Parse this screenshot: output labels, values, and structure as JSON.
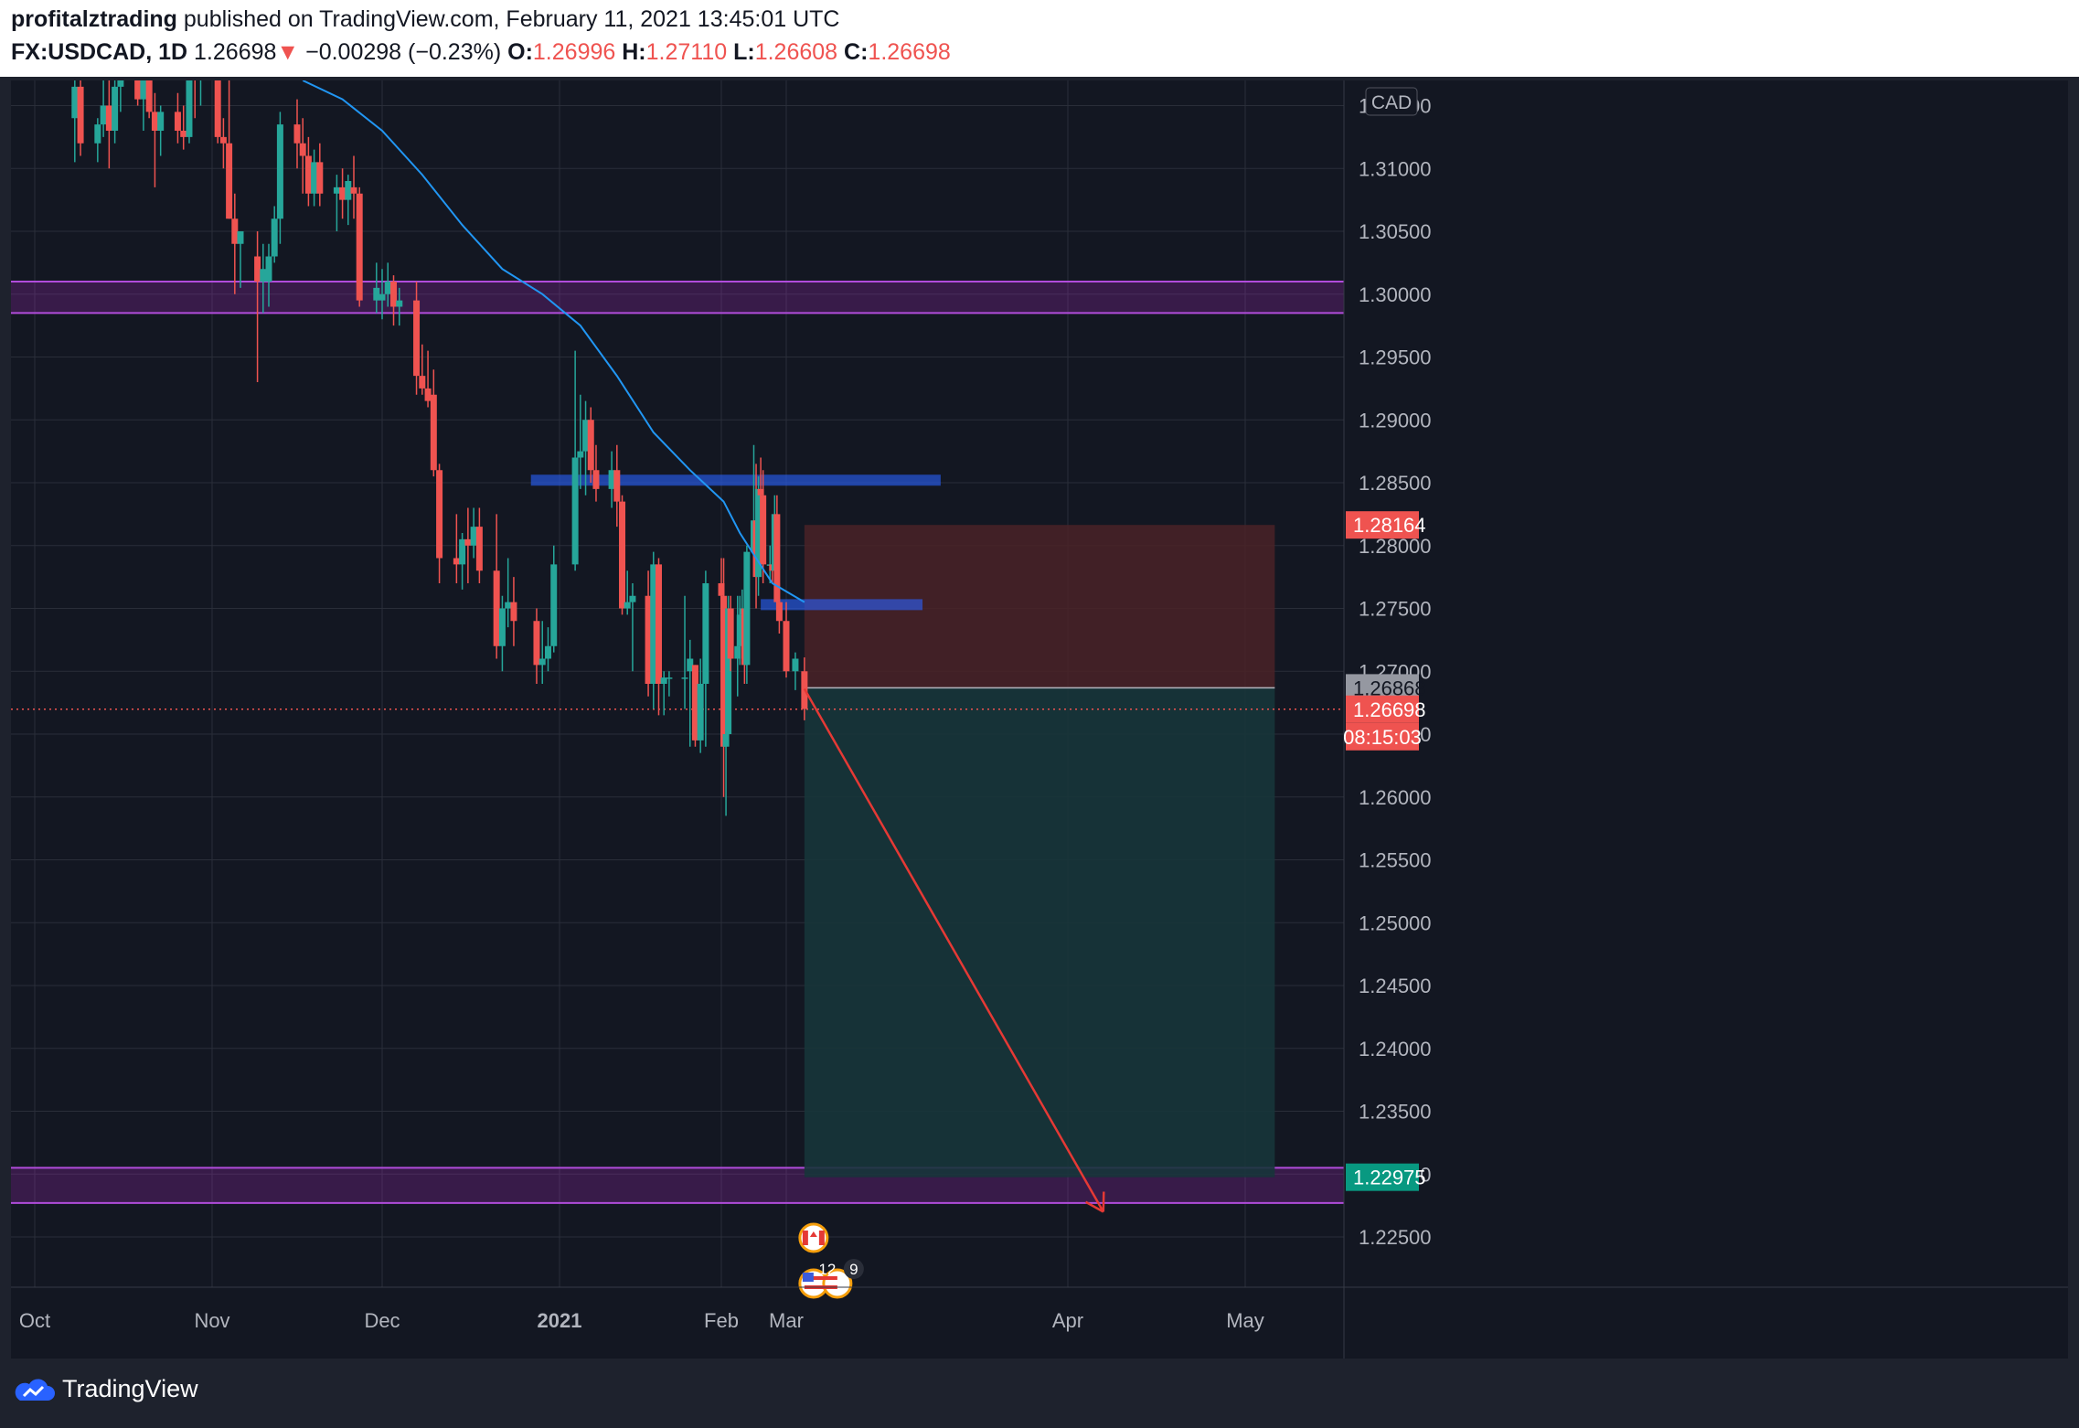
{
  "header": {
    "author": "profitalztrading",
    "published_text": " published on TradingView.com, February 11, 2021 13:45:01 UTC",
    "symbol": "FX:USDCAD, 1D",
    "last": "1.26698",
    "change_arrow": "▼",
    "change": "−0.00298 (−0.23%)",
    "o_label": "O:",
    "o_value": "1.26996",
    "h_label": "H:",
    "h_value": "1.27110",
    "l_label": "L:",
    "l_value": "1.26608",
    "c_label": "C:",
    "c_value": "1.26698"
  },
  "footer": {
    "brand": "TradingView"
  },
  "colors": {
    "up": "#26a69a",
    "down": "#ef5350",
    "ma": "#2196f3",
    "zone": "#9c27b0",
    "level": "#2962ff",
    "arrow": "#e53935",
    "stop_zone": "#4a2227",
    "target_zone": "#17353a"
  },
  "chart_data": {
    "type": "candlestick",
    "symbol": "FX:USDCAD",
    "interval": "1D",
    "currency_label": "CAD",
    "y_ticks": [
      "1.31500",
      "1.31000",
      "1.30500",
      "1.30000",
      "1.29500",
      "1.29000",
      "1.28500",
      "1.28000",
      "1.27500",
      "1.27000",
      "1.26500",
      "1.26000",
      "1.25500",
      "1.25000",
      "1.24500",
      "1.24000",
      "1.23500",
      "1.23000",
      "1.22500"
    ],
    "ylim": [
      1.221,
      1.317
    ],
    "x_labels": [
      {
        "label": "Oct",
        "date": "2020-10-01"
      },
      {
        "label": "Nov",
        "date": "2020-11-01"
      },
      {
        "label": "Dec",
        "date": "2020-12-01"
      },
      {
        "label": "2021",
        "date": "2021-01-01"
      },
      {
        "label": "Feb",
        "date": "2021-02-01"
      },
      {
        "label": "Mar",
        "date": "2021-03-01"
      },
      {
        "label": "Apr",
        "date": "2021-04-01"
      },
      {
        "label": "May",
        "date": "2021-05-01"
      }
    ],
    "price_labels": {
      "stop": "1.28164",
      "entry": "1.26868",
      "last": "1.26698",
      "countdown": "08:15:03",
      "target": "1.22975"
    },
    "event_badges": {
      "count_label": "12",
      "more_label": "9"
    },
    "candles": [
      {
        "date": "2020-10-08",
        "o": 1.314,
        "h": 1.3185,
        "l": 1.3105,
        "c": 1.3165
      },
      {
        "date": "2020-10-09",
        "o": 1.3165,
        "h": 1.318,
        "l": 1.311,
        "c": 1.312
      },
      {
        "date": "2020-10-12",
        "o": 1.312,
        "h": 1.314,
        "l": 1.3105,
        "c": 1.3135
      },
      {
        "date": "2020-10-13",
        "o": 1.3135,
        "h": 1.317,
        "l": 1.3125,
        "c": 1.315
      },
      {
        "date": "2020-10-14",
        "o": 1.315,
        "h": 1.318,
        "l": 1.31,
        "c": 1.313
      },
      {
        "date": "2020-10-15",
        "o": 1.313,
        "h": 1.3175,
        "l": 1.312,
        "c": 1.3165
      },
      {
        "date": "2020-10-16",
        "o": 1.3165,
        "h": 1.318,
        "l": 1.3145,
        "c": 1.317
      },
      {
        "date": "2020-10-19",
        "o": 1.317,
        "h": 1.3185,
        "l": 1.315,
        "c": 1.3155
      },
      {
        "date": "2020-10-20",
        "o": 1.3155,
        "h": 1.318,
        "l": 1.313,
        "c": 1.3175
      },
      {
        "date": "2020-10-21",
        "o": 1.3175,
        "h": 1.318,
        "l": 1.314,
        "c": 1.3145
      },
      {
        "date": "2020-10-22",
        "o": 1.3145,
        "h": 1.316,
        "l": 1.3085,
        "c": 1.313
      },
      {
        "date": "2020-10-23",
        "o": 1.313,
        "h": 1.315,
        "l": 1.311,
        "c": 1.3145
      },
      {
        "date": "2020-10-26",
        "o": 1.3145,
        "h": 1.316,
        "l": 1.312,
        "c": 1.313
      },
      {
        "date": "2020-10-27",
        "o": 1.313,
        "h": 1.315,
        "l": 1.3115,
        "c": 1.3125
      },
      {
        "date": "2020-10-28",
        "o": 1.3125,
        "h": 1.318,
        "l": 1.312,
        "c": 1.3175
      },
      {
        "date": "2020-10-29",
        "o": 1.3175,
        "h": 1.3185,
        "l": 1.314,
        "c": 1.317
      },
      {
        "date": "2020-10-30",
        "o": 1.317,
        "h": 1.318,
        "l": 1.315,
        "c": 1.3175
      },
      {
        "date": "2020-11-02",
        "o": 1.3175,
        "h": 1.3185,
        "l": 1.312,
        "c": 1.3125
      },
      {
        "date": "2020-11-03",
        "o": 1.3125,
        "h": 1.314,
        "l": 1.31,
        "c": 1.312
      },
      {
        "date": "2020-11-04",
        "o": 1.312,
        "h": 1.3175,
        "l": 1.306,
        "c": 1.306
      },
      {
        "date": "2020-11-05",
        "o": 1.306,
        "h": 1.308,
        "l": 1.3,
        "c": 1.304
      },
      {
        "date": "2020-11-06",
        "o": 1.304,
        "h": 1.305,
        "l": 1.3005,
        "c": 1.305
      },
      {
        "date": "2020-11-09",
        "o": 1.303,
        "h": 1.305,
        "l": 1.293,
        "c": 1.301
      },
      {
        "date": "2020-11-10",
        "o": 1.301,
        "h": 1.304,
        "l": 1.2985,
        "c": 1.302
      },
      {
        "date": "2020-11-11",
        "o": 1.301,
        "h": 1.304,
        "l": 1.299,
        "c": 1.303
      },
      {
        "date": "2020-11-12",
        "o": 1.303,
        "h": 1.307,
        "l": 1.3025,
        "c": 1.306
      },
      {
        "date": "2020-11-13",
        "o": 1.306,
        "h": 1.3145,
        "l": 1.304,
        "c": 1.3135
      },
      {
        "date": "2020-11-16",
        "o": 1.3135,
        "h": 1.3155,
        "l": 1.31,
        "c": 1.312
      },
      {
        "date": "2020-11-17",
        "o": 1.312,
        "h": 1.314,
        "l": 1.308,
        "c": 1.311
      },
      {
        "date": "2020-11-18",
        "o": 1.311,
        "h": 1.3125,
        "l": 1.307,
        "c": 1.308
      },
      {
        "date": "2020-11-19",
        "o": 1.308,
        "h": 1.3115,
        "l": 1.307,
        "c": 1.3105
      },
      {
        "date": "2020-11-20",
        "o": 1.3105,
        "h": 1.312,
        "l": 1.307,
        "c": 1.308
      },
      {
        "date": "2020-11-23",
        "o": 1.308,
        "h": 1.3095,
        "l": 1.305,
        "c": 1.3085
      },
      {
        "date": "2020-11-24",
        "o": 1.3085,
        "h": 1.31,
        "l": 1.306,
        "c": 1.3075
      },
      {
        "date": "2020-11-25",
        "o": 1.3075,
        "h": 1.3095,
        "l": 1.3055,
        "c": 1.309
      },
      {
        "date": "2020-11-26",
        "o": 1.3085,
        "h": 1.311,
        "l": 1.306,
        "c": 1.308
      },
      {
        "date": "2020-11-27",
        "o": 1.308,
        "h": 1.3085,
        "l": 1.299,
        "c": 1.2995
      },
      {
        "date": "2020-11-30",
        "o": 1.2995,
        "h": 1.3025,
        "l": 1.2985,
        "c": 1.3005
      },
      {
        "date": "2020-12-01",
        "o": 1.2995,
        "h": 1.302,
        "l": 1.298,
        "c": 1.3
      },
      {
        "date": "2020-12-02",
        "o": 1.3,
        "h": 1.3025,
        "l": 1.299,
        "c": 1.301
      },
      {
        "date": "2020-12-03",
        "o": 1.301,
        "h": 1.3015,
        "l": 1.2975,
        "c": 1.299
      },
      {
        "date": "2020-12-04",
        "o": 1.299,
        "h": 1.3005,
        "l": 1.2975,
        "c": 1.2995
      },
      {
        "date": "2020-12-07",
        "o": 1.2995,
        "h": 1.301,
        "l": 1.292,
        "c": 1.2935
      },
      {
        "date": "2020-12-08",
        "o": 1.2935,
        "h": 1.296,
        "l": 1.292,
        "c": 1.2925
      },
      {
        "date": "2020-12-09",
        "o": 1.2925,
        "h": 1.2955,
        "l": 1.291,
        "c": 1.2915
      },
      {
        "date": "2020-12-10",
        "o": 1.292,
        "h": 1.294,
        "l": 1.2855,
        "c": 1.286
      },
      {
        "date": "2020-12-11",
        "o": 1.286,
        "h": 1.2865,
        "l": 1.277,
        "c": 1.279
      },
      {
        "date": "2020-12-14",
        "o": 1.279,
        "h": 1.2825,
        "l": 1.277,
        "c": 1.2785
      },
      {
        "date": "2020-12-15",
        "o": 1.2785,
        "h": 1.281,
        "l": 1.2765,
        "c": 1.2805
      },
      {
        "date": "2020-12-16",
        "o": 1.2805,
        "h": 1.283,
        "l": 1.277,
        "c": 1.28
      },
      {
        "date": "2020-12-17",
        "o": 1.28,
        "h": 1.283,
        "l": 1.279,
        "c": 1.2815
      },
      {
        "date": "2020-12-18",
        "o": 1.2815,
        "h": 1.283,
        "l": 1.277,
        "c": 1.278
      },
      {
        "date": "2020-12-21",
        "o": 1.278,
        "h": 1.2825,
        "l": 1.271,
        "c": 1.272
      },
      {
        "date": "2020-12-22",
        "o": 1.272,
        "h": 1.276,
        "l": 1.27,
        "c": 1.275
      },
      {
        "date": "2020-12-23",
        "o": 1.275,
        "h": 1.279,
        "l": 1.2735,
        "c": 1.2755
      },
      {
        "date": "2020-12-24",
        "o": 1.2755,
        "h": 1.2775,
        "l": 1.272,
        "c": 1.274
      },
      {
        "date": "2020-12-28",
        "o": 1.274,
        "h": 1.275,
        "l": 1.269,
        "c": 1.2705
      },
      {
        "date": "2020-12-29",
        "o": 1.2705,
        "h": 1.274,
        "l": 1.269,
        "c": 1.271
      },
      {
        "date": "2020-12-30",
        "o": 1.271,
        "h": 1.2735,
        "l": 1.27,
        "c": 1.272
      },
      {
        "date": "2020-12-31",
        "o": 1.272,
        "h": 1.28,
        "l": 1.2715,
        "c": 1.2785
      },
      {
        "date": "2021-01-04",
        "o": 1.2785,
        "h": 1.2955,
        "l": 1.278,
        "c": 1.287
      },
      {
        "date": "2021-01-05",
        "o": 1.287,
        "h": 1.292,
        "l": 1.2845,
        "c": 1.2875
      },
      {
        "date": "2021-01-06",
        "o": 1.2875,
        "h": 1.2915,
        "l": 1.284,
        "c": 1.29
      },
      {
        "date": "2021-01-07",
        "o": 1.29,
        "h": 1.291,
        "l": 1.285,
        "c": 1.286
      },
      {
        "date": "2021-01-08",
        "o": 1.286,
        "h": 1.288,
        "l": 1.2835,
        "c": 1.2845
      },
      {
        "date": "2021-01-11",
        "o": 1.2845,
        "h": 1.2875,
        "l": 1.283,
        "c": 1.286
      },
      {
        "date": "2021-01-12",
        "o": 1.286,
        "h": 1.288,
        "l": 1.2815,
        "c": 1.2835
      },
      {
        "date": "2021-01-13",
        "o": 1.2835,
        "h": 1.284,
        "l": 1.2745,
        "c": 1.275
      },
      {
        "date": "2021-01-14",
        "o": 1.275,
        "h": 1.278,
        "l": 1.2745,
        "c": 1.2755
      },
      {
        "date": "2021-01-15",
        "o": 1.2755,
        "h": 1.277,
        "l": 1.27,
        "c": 1.276
      },
      {
        "date": "2021-01-18",
        "o": 1.276,
        "h": 1.278,
        "l": 1.268,
        "c": 1.269
      },
      {
        "date": "2021-01-19",
        "o": 1.269,
        "h": 1.2795,
        "l": 1.267,
        "c": 1.2785
      },
      {
        "date": "2021-01-20",
        "o": 1.2785,
        "h": 1.279,
        "l": 1.2665,
        "c": 1.269
      },
      {
        "date": "2021-01-21",
        "o": 1.269,
        "h": 1.27,
        "l": 1.2665,
        "c": 1.2695
      },
      {
        "date": "2021-01-22",
        "o": 1.2695,
        "h": 1.27,
        "l": 1.268,
        "c": 1.2695
      },
      {
        "date": "2021-01-25",
        "o": 1.2695,
        "h": 1.276,
        "l": 1.267,
        "c": 1.2695
      },
      {
        "date": "2021-01-26",
        "o": 1.27,
        "h": 1.2725,
        "l": 1.264,
        "c": 1.271
      },
      {
        "date": "2021-01-27",
        "o": 1.2705,
        "h": 1.2705,
        "l": 1.264,
        "c": 1.2645
      },
      {
        "date": "2021-01-28",
        "o": 1.2645,
        "h": 1.271,
        "l": 1.2635,
        "c": 1.269
      },
      {
        "date": "2021-01-29",
        "o": 1.269,
        "h": 1.278,
        "l": 1.264,
        "c": 1.277
      },
      {
        "date": "2021-02-01",
        "o": 1.277,
        "h": 1.279,
        "l": 1.274,
        "c": 1.276
      },
      {
        "date": "2021-02-02",
        "o": 1.276,
        "h": 1.279,
        "l": 1.26,
        "c": 1.264
      },
      {
        "date": "2021-02-03",
        "o": 1.264,
        "h": 1.266,
        "l": 1.2585,
        "c": 1.265
      },
      {
        "date": "2021-02-04",
        "o": 1.265,
        "h": 1.276,
        "l": 1.2645,
        "c": 1.275
      },
      {
        "date": "2021-02-05",
        "o": 1.275,
        "h": 1.276,
        "l": 1.27,
        "c": 1.271
      },
      {
        "date": "2021-02-08",
        "o": 1.271,
        "h": 1.276,
        "l": 1.268,
        "c": 1.272
      },
      {
        "date": "2021-02-09",
        "o": 1.272,
        "h": 1.276,
        "l": 1.2705,
        "c": 1.2745
      },
      {
        "date": "2021-02-10",
        "o": 1.2745,
        "h": 1.2765,
        "l": 1.271,
        "c": 1.275
      },
      {
        "date": "2021-02-11",
        "o": 1.275,
        "h": 1.277,
        "l": 1.269,
        "c": 1.2705
      },
      {
        "date": "2021-02-12",
        "o": 1.2705,
        "h": 1.28,
        "l": 1.269,
        "c": 1.2795
      },
      {
        "date": "2021-02-15",
        "o": 1.2795,
        "h": 1.288,
        "l": 1.2785,
        "c": 1.282
      },
      {
        "date": "2021-02-16",
        "o": 1.282,
        "h": 1.2865,
        "l": 1.275,
        "c": 1.2775
      },
      {
        "date": "2021-02-17",
        "o": 1.2775,
        "h": 1.2855,
        "l": 1.276,
        "c": 1.2845
      },
      {
        "date": "2021-02-18",
        "o": 1.2845,
        "h": 1.287,
        "l": 1.282,
        "c": 1.284
      },
      {
        "date": "2021-02-19",
        "o": 1.284,
        "h": 1.286,
        "l": 1.277,
        "c": 1.2785
      },
      {
        "date": "2021-02-22",
        "o": 1.2785,
        "h": 1.28,
        "l": 1.277,
        "c": 1.2785
      },
      {
        "date": "2021-02-23",
        "o": 1.2785,
        "h": 1.2825,
        "l": 1.277,
        "c": 1.278
      },
      {
        "date": "2021-02-24",
        "o": 1.278,
        "h": 1.284,
        "l": 1.277,
        "c": 1.2825
      },
      {
        "date": "2021-02-25",
        "o": 1.2825,
        "h": 1.284,
        "l": 1.275,
        "c": 1.2755
      },
      {
        "date": "2021-02-26",
        "o": 1.2755,
        "h": 1.277,
        "l": 1.273,
        "c": 1.274
      },
      {
        "date": "2021-03-01",
        "o": 1.274,
        "h": 1.2755,
        "l": 1.2695,
        "c": 1.27
      },
      {
        "date": "2021-03-02",
        "o": 1.27,
        "h": 1.2715,
        "l": 1.2685,
        "c": 1.271
      },
      {
        "date": "2021-03-03",
        "o": 1.27,
        "h": 1.2711,
        "l": 1.2661,
        "c": 1.267
      }
    ],
    "ma_series": {
      "name": "",
      "points": [
        {
          "date": "2020-11-17",
          "v": 1.317
        },
        {
          "date": "2020-11-24",
          "v": 1.3155
        },
        {
          "date": "2020-12-01",
          "v": 1.313
        },
        {
          "date": "2020-12-08",
          "v": 1.3095
        },
        {
          "date": "2020-12-15",
          "v": 1.3055
        },
        {
          "date": "2020-12-22",
          "v": 1.302
        },
        {
          "date": "2020-12-29",
          "v": 1.3
        },
        {
          "date": "2021-01-05",
          "v": 1.2975
        },
        {
          "date": "2021-01-12",
          "v": 1.2935
        },
        {
          "date": "2021-01-19",
          "v": 1.289
        },
        {
          "date": "2021-01-26",
          "v": 1.286
        },
        {
          "date": "2021-02-02",
          "v": 1.2835
        },
        {
          "date": "2021-02-09",
          "v": 1.281
        },
        {
          "date": "2021-02-16",
          "v": 1.279
        },
        {
          "date": "2021-02-23",
          "v": 1.277
        },
        {
          "date": "2021-03-03",
          "v": 1.2755
        }
      ]
    },
    "zones": [
      {
        "from": 1.2985,
        "to": 1.301
      },
      {
        "from": 1.2277,
        "to": 1.2305
      }
    ],
    "levels": [
      {
        "value": 1.2852,
        "start": "2020-12-27",
        "end": "2021-03-18"
      },
      {
        "value": 1.2753,
        "start": "2021-02-18",
        "end": "2021-03-16"
      }
    ],
    "position": {
      "start": "2021-03-03",
      "end": "2021-05-06",
      "entry": 1.26868,
      "stop": 1.28164,
      "target": 1.22975
    },
    "arrow": {
      "from_date": "2021-03-03",
      "from": 1.2686,
      "to_date": "2021-04-07",
      "to": 1.227
    },
    "grid": true
  }
}
